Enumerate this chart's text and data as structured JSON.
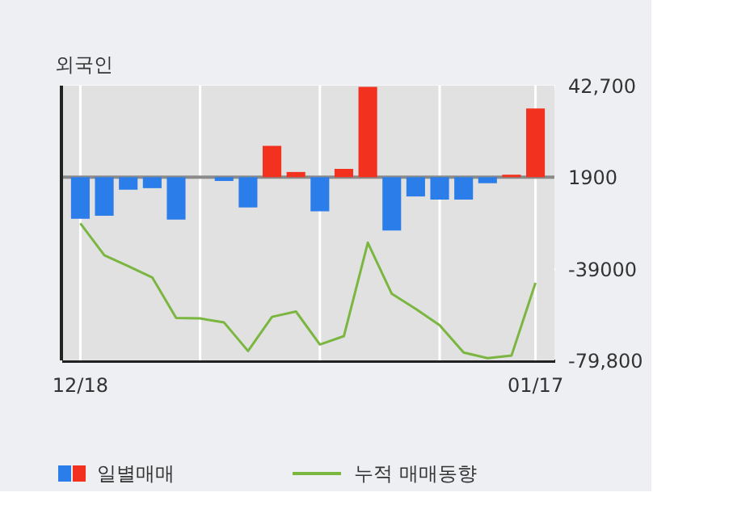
{
  "chart_data": {
    "type": "bar",
    "title": "외국인",
    "categories": [
      "12/18",
      null,
      null,
      null,
      null,
      null,
      null,
      null,
      null,
      null,
      null,
      null,
      null,
      null,
      null,
      null,
      null,
      null,
      null,
      "01/17"
    ],
    "series": [
      {
        "name": "일별매매",
        "type": "bar",
        "colors": [
          "#2b7de9",
          "#2b7de9",
          "#2b7de9",
          "#2b7de9",
          "#2b7de9",
          "#2b7de9",
          "#2b7de9",
          "#2b7de9",
          "#f2321e",
          "#f2321e",
          "#2b7de9",
          "#f2321e",
          "#f2321e",
          "#2b7de9",
          "#2b7de9",
          "#2b7de9",
          "#2b7de9",
          "#2b7de9",
          "#f2321e",
          "#f2321e"
        ],
        "base": [
          1900,
          1900,
          1900,
          1900,
          1900,
          null,
          1900,
          1900,
          1900,
          1900,
          1900,
          1900,
          1900,
          1900,
          1900,
          1900,
          1900,
          1900,
          1900,
          1900
        ],
        "values": [
          -18600,
          -17200,
          -5600,
          -4900,
          -18900,
          null,
          -1700,
          -13500,
          14000,
          2300,
          -15200,
          3700,
          40300,
          -23800,
          -8600,
          -10000,
          -10000,
          -2700,
          1100,
          30600
        ]
      },
      {
        "name": "누적 매매동향",
        "type": "line",
        "color": "#7ab640",
        "values": [
          -18700,
          -32900,
          -37800,
          -42800,
          -60900,
          -61100,
          -62900,
          -75600,
          -60400,
          -58000,
          -72700,
          -69000,
          -27300,
          -50100,
          -56800,
          -64100,
          -76300,
          -78800,
          -77600,
          -45200
        ]
      }
    ],
    "ylim": [
      -79800,
      42700
    ],
    "yticks": [
      {
        "value": 42700,
        "label": "42,700"
      },
      1900,
      -39000,
      {
        "value": -79800,
        "label": "-79,800"
      }
    ],
    "ref_lines": [
      {
        "axis": "y",
        "value": 1900,
        "color": "#8a8a8a"
      }
    ],
    "grid": true,
    "legend": "bottom"
  }
}
